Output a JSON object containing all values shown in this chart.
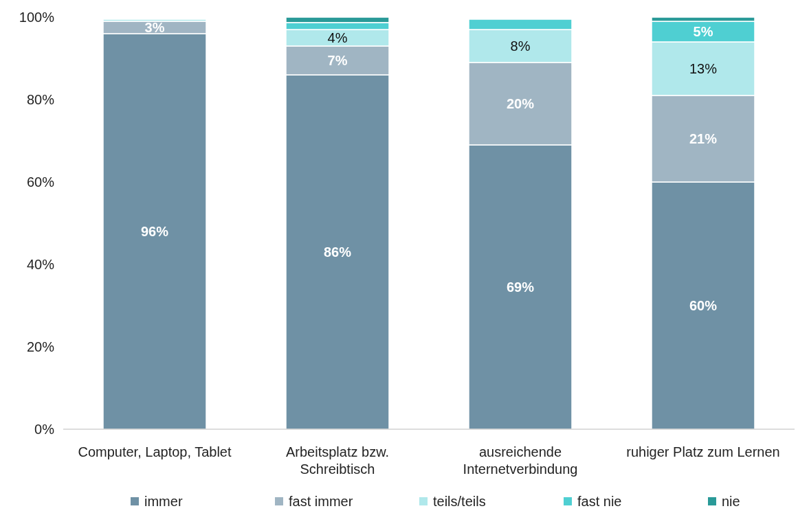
{
  "chart_data": {
    "type": "bar",
    "stacked": true,
    "categories": [
      "Computer, Laptop, Tablet",
      "Arbeitsplatz bzw. Schreibtisch",
      "ausreichende Internetverbindung",
      "ruhiger Platz zum Lernen"
    ],
    "series": [
      {
        "name": "immer",
        "color": "#6f91a5",
        "values": [
          96,
          86,
          69,
          60
        ],
        "value_labels": [
          "96%",
          "86%",
          "69%",
          "60%"
        ]
      },
      {
        "name": "fast immer",
        "color": "#a0b5c3",
        "values": [
          3,
          7,
          20,
          21
        ],
        "value_labels": [
          "3%",
          "7%",
          "20%",
          "21%"
        ]
      },
      {
        "name": "teils/teils",
        "color": "#b0e8eb",
        "values": [
          0.5,
          4,
          8,
          13
        ],
        "value_labels": [
          null,
          "4%",
          "8%",
          "13%"
        ]
      },
      {
        "name": "fast nie",
        "color": "#4fcfd2",
        "values": [
          0,
          1.7,
          2.5,
          5
        ],
        "value_labels": [
          null,
          null,
          null,
          "5%"
        ]
      },
      {
        "name": "nie",
        "color": "#2a9a98",
        "values": [
          0,
          1.3,
          0,
          1
        ],
        "value_labels": [
          null,
          null,
          null,
          null
        ]
      }
    ],
    "ylim": [
      0,
      100
    ],
    "yticks": [
      {
        "value": 0,
        "label": "0%"
      },
      {
        "value": 20,
        "label": "20%"
      },
      {
        "value": 40,
        "label": "40%"
      },
      {
        "value": 60,
        "label": "60%"
      },
      {
        "value": 80,
        "label": "80%"
      },
      {
        "value": 100,
        "label": "100%"
      }
    ],
    "legend": "bottom"
  }
}
